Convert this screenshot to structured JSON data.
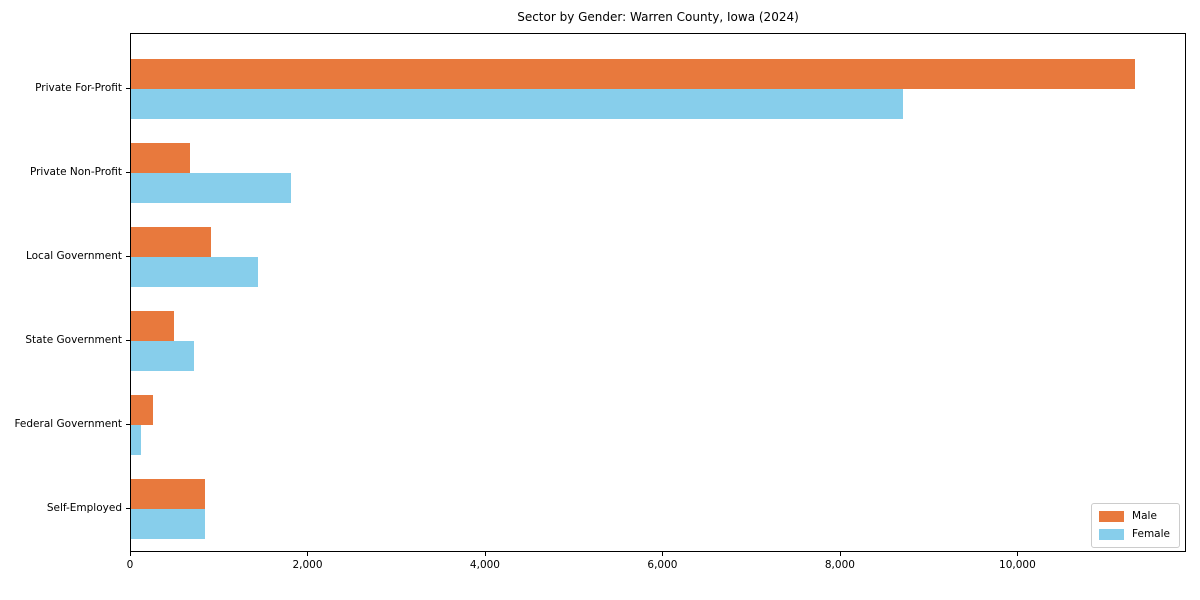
{
  "chart_data": {
    "type": "bar",
    "orientation": "horizontal",
    "title": "Sector by Gender: Warren County, Iowa (2024)",
    "categories": [
      "Private For-Profit",
      "Private Non-Profit",
      "Local Government",
      "State Government",
      "Federal Government",
      "Self-Employed"
    ],
    "series": [
      {
        "name": "Male",
        "color": "#E8793D",
        "values": [
          11330,
          670,
          900,
          480,
          245,
          840
        ]
      },
      {
        "name": "Female",
        "color": "#87CEEB",
        "values": [
          8715,
          1805,
          1430,
          710,
          115,
          835
        ]
      }
    ],
    "xlabel": "",
    "ylabel": "",
    "xlim": [
      0,
      11900
    ],
    "xticks": [
      0,
      2000,
      4000,
      6000,
      8000,
      10000
    ],
    "xtick_labels": [
      "0",
      "2,000",
      "4,000",
      "6,000",
      "8,000",
      "10,000"
    ],
    "grid": false,
    "legend": {
      "position": "lower right",
      "entries": [
        "Male",
        "Female"
      ]
    }
  }
}
